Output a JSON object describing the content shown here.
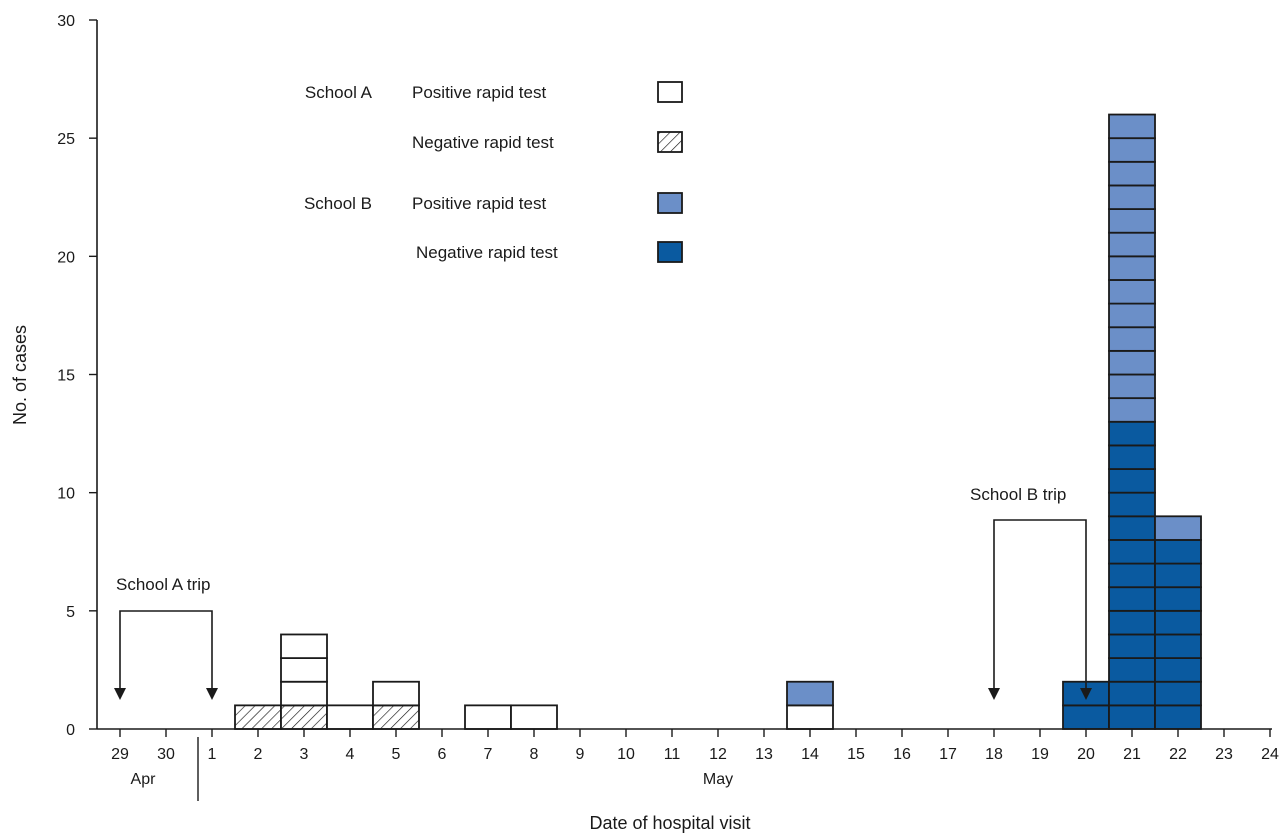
{
  "chart_data": {
    "type": "bar",
    "stacked": true,
    "xlabel": "Date of hospital visit",
    "ylabel": "No. of cases",
    "ylim": [
      0,
      30
    ],
    "yticks": [
      0,
      5,
      10,
      15,
      20,
      25,
      30
    ],
    "x_ticks": [
      "29",
      "30",
      "1",
      "2",
      "3",
      "4",
      "5",
      "6",
      "7",
      "8",
      "9",
      "10",
      "11",
      "12",
      "13",
      "14",
      "15",
      "16",
      "17",
      "18",
      "19",
      "20",
      "21",
      "22",
      "23",
      "24"
    ],
    "month_labels": [
      {
        "label": "Apr",
        "tick": "29.5"
      },
      {
        "label": "May",
        "tick": "12"
      }
    ],
    "categories": [
      "2",
      "3",
      "4",
      "5",
      "7",
      "8",
      "14",
      "20",
      "21",
      "22"
    ],
    "series": [
      {
        "name": "School A Negative rapid test",
        "color": "#ffffff",
        "pattern": "hatch",
        "values": [
          1,
          1,
          0,
          1,
          0,
          0,
          0,
          0,
          0,
          0
        ]
      },
      {
        "name": "School A Positive rapid test",
        "color": "#ffffff",
        "pattern": "none",
        "values": [
          0,
          3,
          1,
          1,
          1,
          1,
          1,
          0,
          0,
          0
        ]
      },
      {
        "name": "School B Negative rapid test",
        "color": "#0a5aa0",
        "pattern": "none",
        "values": [
          0,
          0,
          0,
          0,
          0,
          0,
          0,
          2,
          13,
          8
        ]
      },
      {
        "name": "School B Positive rapid test",
        "color": "#6b8fc8",
        "pattern": "none",
        "values": [
          0,
          0,
          0,
          0,
          0,
          0,
          1,
          0,
          13,
          1
        ]
      }
    ],
    "legend": {
      "placement": "top-left",
      "groups": [
        {
          "school": "School A",
          "entries": [
            {
              "label": "Positive rapid test",
              "color": "#ffffff",
              "pattern": "none"
            },
            {
              "label": "Negative rapid test",
              "color": "#ffffff",
              "pattern": "hatch"
            }
          ]
        },
        {
          "school": "School B",
          "entries": [
            {
              "label": "Positive rapid test",
              "color": "#6b8fc8",
              "pattern": "none"
            },
            {
              "label": "Negative rapid test",
              "color": "#0a5aa0",
              "pattern": "none"
            }
          ]
        }
      ]
    },
    "annotations": [
      {
        "text": "School A trip",
        "from_x": "29",
        "to_x": "1"
      },
      {
        "text": "School B trip",
        "from_x": "18",
        "to_x": "20"
      }
    ],
    "grid": false
  }
}
